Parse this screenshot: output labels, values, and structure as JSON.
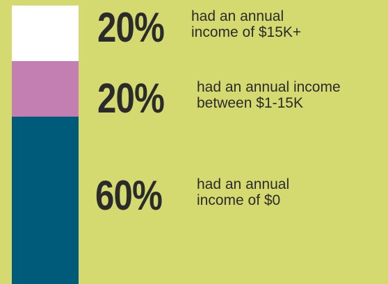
{
  "chart_data": {
    "type": "stacked_bar",
    "series": [
      {
        "name": "had an annual\nincome of $0",
        "color": "#005a7a",
        "values": [
          60
        ],
        "value_labels": [
          "60%"
        ]
      },
      {
        "name": "had an annual income\nbetween $1-15K",
        "color": "#c47fb2",
        "values": [
          20
        ],
        "value_labels": [
          "20%"
        ]
      },
      {
        "name": "had an annual\nincome of $15K+",
        "color": "#ffffff",
        "values": [
          20
        ],
        "value_labels": [
          "20%"
        ]
      }
    ],
    "ylim": [
      0,
      100
    ]
  }
}
